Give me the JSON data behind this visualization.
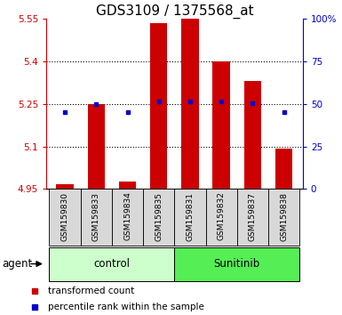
{
  "title": "GDS3109 / 1375568_at",
  "samples": [
    "GSM159830",
    "GSM159833",
    "GSM159834",
    "GSM159835",
    "GSM159831",
    "GSM159832",
    "GSM159837",
    "GSM159838"
  ],
  "red_values": [
    4.968,
    5.25,
    4.975,
    5.535,
    5.55,
    5.4,
    5.33,
    5.093
  ],
  "blue_values": [
    5.22,
    5.248,
    5.222,
    5.258,
    5.258,
    5.258,
    5.252,
    5.222
  ],
  "y_min": 4.95,
  "y_max": 5.55,
  "y_ticks_left": [
    4.95,
    5.1,
    5.25,
    5.4,
    5.55
  ],
  "y_ticks_right": [
    0,
    25,
    50,
    75,
    100
  ],
  "bar_color": "#cc0000",
  "dot_color": "#0000cc",
  "control_color": "#ccffcc",
  "sunitinib_color": "#55ee55",
  "title_fontsize": 11,
  "tick_fontsize": 7.5,
  "sample_fontsize": 6.5,
  "label_fontsize": 8.5,
  "legend_fontsize": 7.5,
  "bar_width": 0.55,
  "baseline": 4.95,
  "n_control": 4,
  "n_sunitinib": 4
}
